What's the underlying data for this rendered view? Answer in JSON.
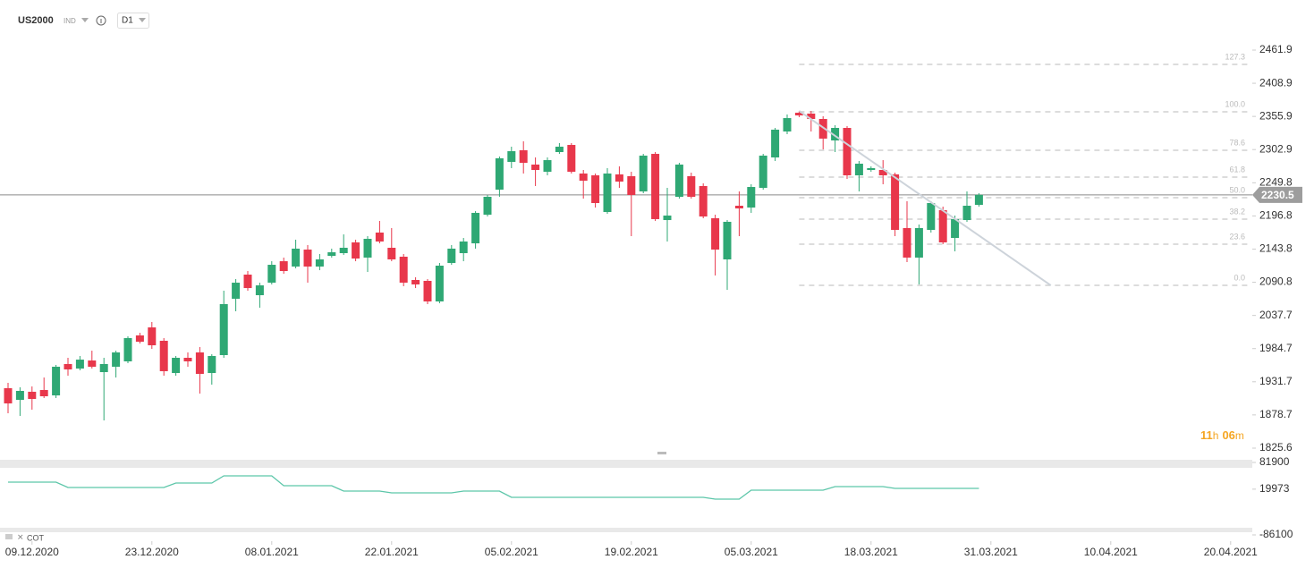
{
  "header": {
    "symbol": "US2000",
    "market": "IND",
    "interval": "D1"
  },
  "chart_data": [
    {
      "type": "candlestick",
      "up_color": "#2fa874",
      "down_color": "#e8374b",
      "ylim": [
        1817,
        2542
      ],
      "yticks": [
        2461.9,
        2408.9,
        2355.9,
        2302.9,
        2249.8,
        2196.8,
        2143.8,
        2090.8,
        2037.7,
        1984.7,
        1931.7,
        1878.7,
        1825.6
      ],
      "xticks": [
        {
          "value": 2,
          "label": "09.12.2020"
        },
        {
          "value": 12,
          "label": "23.12.2020"
        },
        {
          "value": 22,
          "label": "08.01.2021"
        },
        {
          "value": 32,
          "label": "22.01.2021"
        },
        {
          "value": 42,
          "label": "05.02.2021"
        },
        {
          "value": 52,
          "label": "19.02.2021"
        },
        {
          "value": 62,
          "label": "05.03.2021"
        },
        {
          "value": 72,
          "label": "18.03.2021"
        },
        {
          "value": 82,
          "label": "31.03.2021"
        },
        {
          "value": 92,
          "label": "10.04.2021"
        },
        {
          "value": 102,
          "label": "20.04.2021"
        }
      ],
      "open": [
        1921.4,
        1902.8,
        1915.7,
        1918.5,
        1909.9,
        1960.0,
        1952.8,
        1965.7,
        1947.1,
        1955.7,
        1964.3,
        2005.8,
        2018.6,
        1997.2,
        1945.7,
        1970.0,
        1978.6,
        1945.7,
        1974.3,
        2064.4,
        2103.0,
        2070.1,
        2090.1,
        2124.4,
        2115.9,
        2143.0,
        2115.9,
        2133.0,
        2137.3,
        2154.5,
        2130.2,
        2170.2,
        2145.9,
        2131.6,
        2094.4,
        2093.0,
        2060.1,
        2121.6,
        2137.3,
        2153.0,
        2198.8,
        2238.8,
        2283.2,
        2301.8,
        2278.9,
        2267.4,
        2298.9,
        2310.3,
        2264.6,
        2261.7,
        2203.1,
        2263.2,
        2260.3,
        2236.0,
        2296.0,
        2190.2,
        2227.4,
        2260.3,
        2244.6,
        2193.1,
        2127.3,
        2213.1,
        2210.2,
        2241.7,
        2290.3,
        2331.8,
        2361.8,
        2360.4,
        2351.8,
        2317.5,
        2337.5,
        2261.7,
        2270.3,
        2270.3,
        2263.2,
        2177.4,
        2130.2,
        2174.5,
        2206.0,
        2161.6,
        2190.2,
        2214.5
      ],
      "high": [
        1930.0,
        1922.8,
        1924.2,
        1938.5,
        1958.6,
        1970.0,
        1972.9,
        1981.4,
        1970.0,
        1981.4,
        2004.3,
        2010.0,
        2027.2,
        2001.5,
        1972.9,
        1978.6,
        1987.2,
        1975.7,
        2077.3,
        2095.8,
        2108.7,
        2090.1,
        2124.4,
        2130.2,
        2158.8,
        2150.2,
        2135.9,
        2144.5,
        2167.3,
        2158.8,
        2164.5,
        2188.8,
        2177.4,
        2135.9,
        2098.7,
        2095.8,
        2121.6,
        2150.2,
        2161.6,
        2204.5,
        2230.3,
        2291.8,
        2307.5,
        2316.1,
        2290.3,
        2290.3,
        2313.2,
        2313.2,
        2270.3,
        2264.6,
        2273.2,
        2276.0,
        2267.4,
        2296.0,
        2298.9,
        2241.7,
        2281.7,
        2266.0,
        2248.9,
        2198.8,
        2190.2,
        2236.0,
        2247.4,
        2296.0,
        2337.5,
        2359.0,
        2364.7,
        2364.7,
        2356.1,
        2341.8,
        2340.4,
        2284.6,
        2276.0,
        2286.0,
        2266.0,
        2220.3,
        2183.1,
        2220.3,
        2211.7,
        2197.4,
        2236.0,
        2233.1
      ],
      "low": [
        1881.3,
        1877.1,
        1887.1,
        1905.7,
        1905.7,
        1941.4,
        1950.0,
        1952.8,
        1869.9,
        1938.5,
        1961.4,
        1992.9,
        1984.3,
        1941.4,
        1941.4,
        1955.7,
        1912.8,
        1927.1,
        1970.0,
        2044.4,
        2077.3,
        2050.1,
        2087.3,
        2104.4,
        2113.0,
        2090.1,
        2110.1,
        2130.2,
        2134.5,
        2124.4,
        2107.3,
        2153.0,
        2124.4,
        2084.4,
        2081.5,
        2055.8,
        2057.2,
        2118.7,
        2124.4,
        2144.5,
        2195.9,
        2227.4,
        2273.2,
        2264.6,
        2244.6,
        2261.7,
        2296.0,
        2264.6,
        2224.5,
        2210.2,
        2200.2,
        2241.7,
        2164.5,
        2233.1,
        2188.8,
        2155.9,
        2224.5,
        2224.5,
        2193.1,
        2101.6,
        2078.7,
        2164.5,
        2201.7,
        2238.8,
        2284.6,
        2327.5,
        2354.7,
        2331.8,
        2303.2,
        2298.9,
        2256.0,
        2236.0,
        2267.4,
        2247.4,
        2164.5,
        2123.0,
        2087.3,
        2170.2,
        2151.6,
        2140.2,
        2187.4,
        2211.7
      ],
      "close": [
        1897.1,
        1917.1,
        1904.2,
        1908.5,
        1955.7,
        1951.4,
        1967.1,
        1955.7,
        1960.0,
        1978.6,
        2001.5,
        1995.7,
        1990.0,
        1948.6,
        1970.0,
        1964.3,
        1944.3,
        1972.9,
        2055.8,
        2090.1,
        2081.5,
        2085.8,
        2118.7,
        2108.7,
        2144.5,
        2115.9,
        2127.3,
        2138.7,
        2145.9,
        2128.7,
        2160.2,
        2155.9,
        2127.3,
        2090.1,
        2087.3,
        2060.1,
        2117.3,
        2144.5,
        2155.9,
        2201.7,
        2227.4,
        2288.9,
        2300.3,
        2281.7,
        2270.3,
        2286.0,
        2307.5,
        2267.4,
        2253.1,
        2217.4,
        2264.6,
        2251.7,
        2230.3,
        2293.2,
        2191.7,
        2197.4,
        2278.9,
        2227.4,
        2195.9,
        2143.0,
        2187.4,
        2208.8,
        2243.1,
        2293.2,
        2334.7,
        2353.2,
        2357.5,
        2351.8,
        2320.4,
        2337.5,
        2261.7,
        2280.3,
        2273.2,
        2261.7,
        2174.5,
        2130.2,
        2177.4,
        2217.4,
        2154.5,
        2191.7,
        2213.1,
        2230.5
      ],
      "last_price": 2230.5,
      "fibonacci": {
        "anchor_index": 66,
        "levels": [
          {
            "label": "127.3",
            "price": 2439.0
          },
          {
            "label": "100.0",
            "price": 2363.3
          },
          {
            "label": "78.6",
            "price": 2301.8
          },
          {
            "label": "61.8",
            "price": 2258.9
          },
          {
            "label": "50.0",
            "price": 2226.0
          },
          {
            "label": "38.2",
            "price": 2191.7
          },
          {
            "label": "23.6",
            "price": 2151.6
          },
          {
            "label": "0.0",
            "price": 2085.8
          }
        ]
      },
      "trendline": {
        "from": [
          66,
          2364.7
        ],
        "to": [
          87,
          2085.8
        ]
      },
      "countdown": [
        "11",
        "h",
        "06",
        "m"
      ]
    },
    {
      "type": "line",
      "label": "COT",
      "color": "#5cc6a9",
      "ylim": [
        -86100,
        81900
      ],
      "yticks": [
        81900,
        19973,
        -86100
      ],
      "values": [
        36272,
        36272,
        36272,
        36272,
        36272,
        23828,
        23828,
        23828,
        23828,
        23828,
        23828,
        23828,
        23828,
        23828,
        34198,
        34198,
        34198,
        34198,
        50790,
        50790,
        50790,
        50790,
        50790,
        27976,
        27976,
        27976,
        27976,
        27976,
        15532,
        15532,
        15532,
        15532,
        11384,
        11384,
        11384,
        11384,
        11384,
        11384,
        15532,
        15532,
        15532,
        15532,
        1014,
        1014,
        1014,
        1014,
        1014,
        1014,
        1014,
        1014,
        1014,
        1014,
        1014,
        1014,
        1014,
        1014,
        1014,
        1014,
        1014,
        -3134,
        -3134,
        -3134,
        17606,
        17606,
        17606,
        17606,
        17606,
        17606,
        17606,
        25902,
        25902,
        25902,
        25902,
        25902,
        21754,
        21754,
        21754,
        21754,
        21754,
        21754,
        21754,
        21754
      ]
    }
  ]
}
